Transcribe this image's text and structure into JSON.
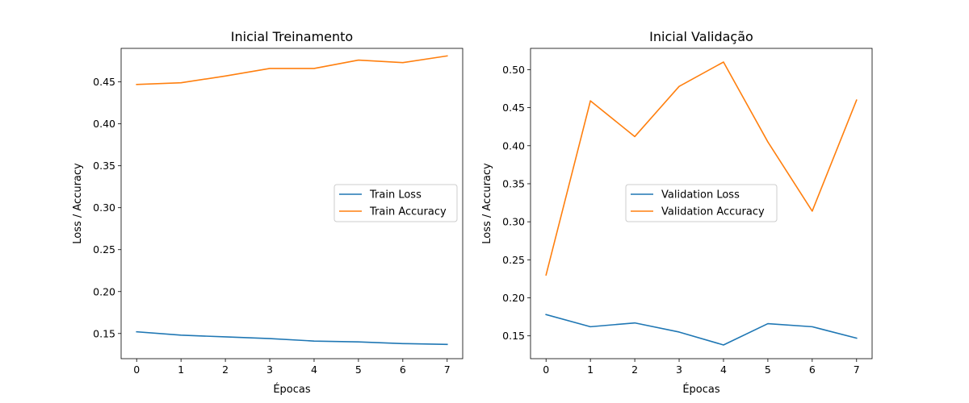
{
  "chart_data": [
    {
      "type": "line",
      "title": "Inicial Treinamento",
      "xlabel": "Épocas",
      "ylabel": "Loss / Accuracy",
      "xlim": [
        -0.35,
        7.35
      ],
      "ylim": [
        0.12,
        0.49
      ],
      "xticks": [
        "0",
        "1",
        "2",
        "3",
        "4",
        "5",
        "6",
        "7"
      ],
      "yticks": [
        "0.15",
        "0.20",
        "0.25",
        "0.30",
        "0.35",
        "0.40",
        "0.45"
      ],
      "legend": "center-right",
      "grid": false,
      "x": [
        0,
        1,
        2,
        3,
        4,
        5,
        6,
        7
      ],
      "series": [
        {
          "name": "Train Loss",
          "color": "#1f77b4",
          "values": [
            0.152,
            0.148,
            0.146,
            0.144,
            0.141,
            0.14,
            0.138,
            0.137
          ]
        },
        {
          "name": "Train Accuracy",
          "color": "#ff7f0e",
          "values": [
            0.447,
            0.449,
            0.457,
            0.466,
            0.466,
            0.476,
            0.473,
            0.481
          ]
        }
      ]
    },
    {
      "type": "line",
      "title": "Inicial Validação",
      "xlabel": "Épocas",
      "ylabel": "Loss / Accuracy",
      "xlim": [
        -0.35,
        7.35
      ],
      "ylim": [
        0.12,
        0.528
      ],
      "xticks": [
        "0",
        "1",
        "2",
        "3",
        "4",
        "5",
        "6",
        "7"
      ],
      "yticks": [
        "0.15",
        "0.20",
        "0.25",
        "0.30",
        "0.35",
        "0.40",
        "0.45",
        "0.50"
      ],
      "legend": "center",
      "grid": false,
      "x": [
        0,
        1,
        2,
        3,
        4,
        5,
        6,
        7
      ],
      "series": [
        {
          "name": "Validation Loss",
          "color": "#1f77b4",
          "values": [
            0.178,
            0.162,
            0.167,
            0.155,
            0.138,
            0.166,
            0.162,
            0.147
          ]
        },
        {
          "name": "Validation Accuracy",
          "color": "#ff7f0e",
          "values": [
            0.23,
            0.459,
            0.412,
            0.478,
            0.51,
            0.405,
            0.314,
            0.46
          ]
        }
      ]
    }
  ]
}
